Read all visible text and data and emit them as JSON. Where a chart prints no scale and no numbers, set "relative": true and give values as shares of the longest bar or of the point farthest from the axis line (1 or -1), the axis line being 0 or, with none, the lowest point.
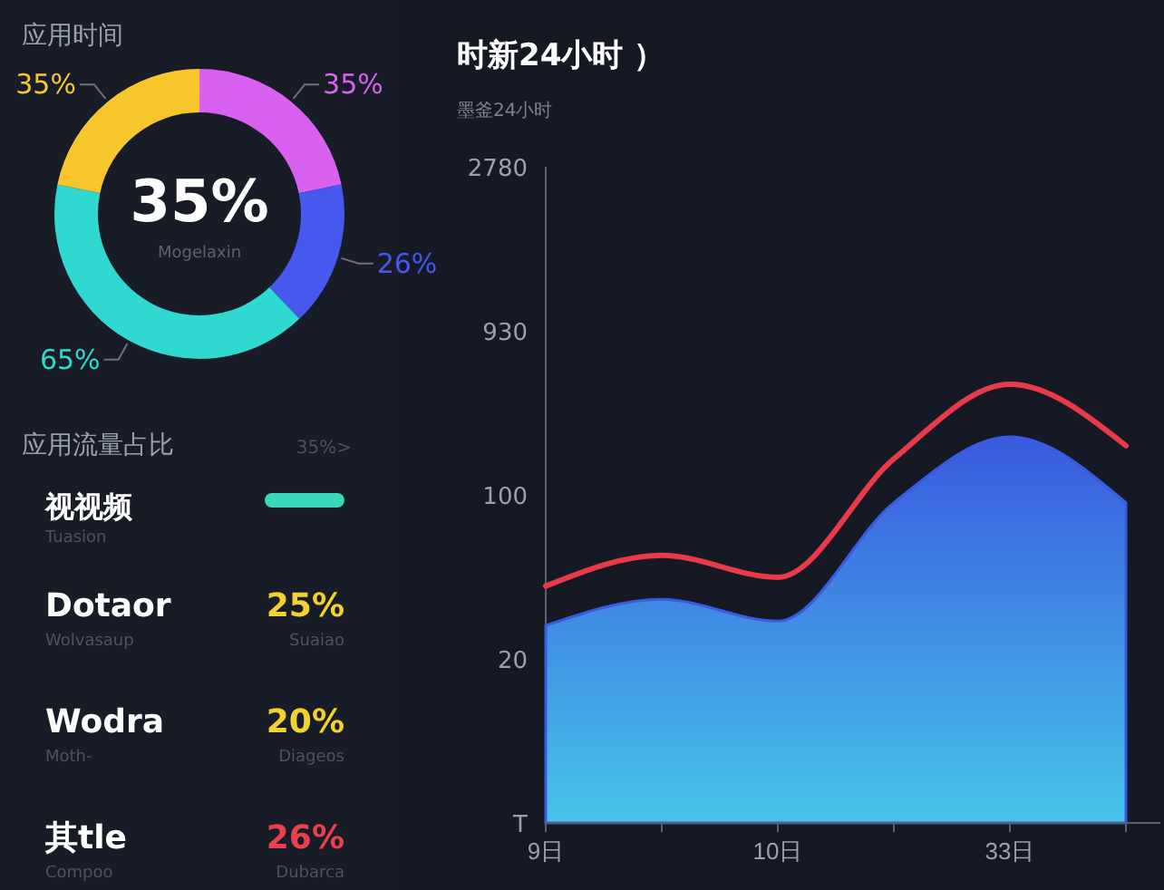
{
  "chart_data": [
    {
      "type": "donut",
      "title": "应用时间",
      "categories": [
        null,
        null,
        null,
        null
      ],
      "values": [
        35,
        26,
        65,
        35
      ],
      "colors": [
        "#d862ef",
        "#4658ee",
        "#2fd8d0",
        "#f7c62c"
      ],
      "value_labels": [
        "35%",
        "26%",
        "65%",
        "35%"
      ],
      "annotations": [
        "35%",
        "Mogelaxin"
      ]
    },
    {
      "type": "other",
      "title": "应用流量占比",
      "annotations": [
        "35%>",
        "视视频",
        "Tuasion",
        "Dotaor",
        "Wolvasaup",
        "25%",
        "Suaiao",
        "Wodra",
        "Moth-",
        "20%",
        "Diageos",
        "其tle",
        "Compoo",
        "26%",
        "Dubarca"
      ]
    },
    {
      "type": "line",
      "title": "时新24小时 ）",
      "subtitle": "墨釜24小时",
      "relative": true,
      "categories": [
        "9日",
        null,
        "10日",
        null,
        "33日",
        null
      ],
      "annotations": [
        "T",
        "20",
        "100",
        "930",
        "2780"
      ],
      "series": [
        {
          "type": "area",
          "color": "#3a5ae0",
          "values": [
            0.45,
            0.51,
            0.46,
            0.73,
            0.88,
            0.73
          ]
        },
        {
          "type": "line",
          "color": "#e83a48",
          "values": [
            0.54,
            0.61,
            0.56,
            0.83,
            1,
            0.86
          ]
        }
      ]
    }
  ]
}
